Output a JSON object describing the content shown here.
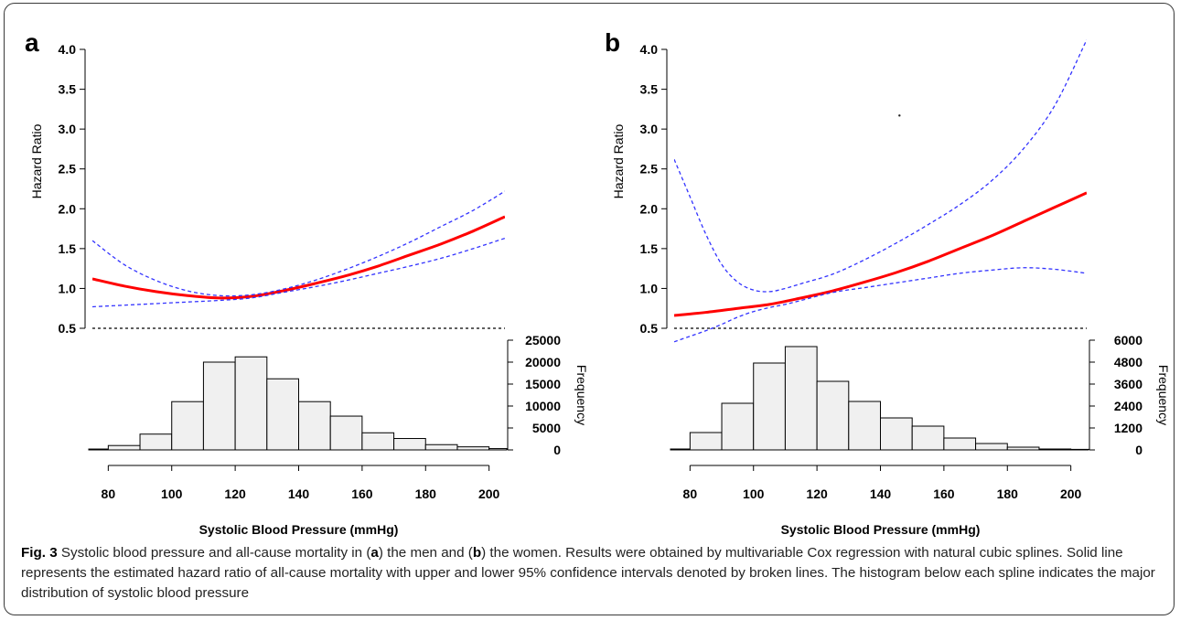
{
  "caption": {
    "fig_label": "Fig. 3",
    "segments": [
      {
        "t": " Systolic blood pressure and all-cause mortality in (",
        "b": false
      },
      {
        "t": "a",
        "b": true
      },
      {
        "t": ") the men and (",
        "b": false
      },
      {
        "t": "b",
        "b": true
      },
      {
        "t": ") the women. Results were obtained by multivariable Cox regression with natural cubic splines. Solid line represents the estimated hazard ratio of all-cause mortality with upper and lower 95% confidence intervals denoted by broken lines. The histogram below each spline indicates the major distribution of systolic blood pressure",
        "b": false
      }
    ]
  },
  "colors": {
    "estimate": "#ff0000",
    "ci": "#3333ff",
    "reference": "#000000",
    "hist_fill": "#f0f0f0",
    "hist_stroke": "#000000"
  },
  "chart_data": [
    {
      "panel": "a",
      "type": "line",
      "xlabel": "Systolic Blood Pressure (mmHg)",
      "ylabel": "Hazard Ratio",
      "ylabel_right": "Frequency",
      "xlim": [
        75,
        205
      ],
      "xticks": [
        80,
        100,
        120,
        140,
        160,
        180,
        200
      ],
      "ylim": [
        0.5,
        4.0
      ],
      "yticks": [
        "0.5",
        "1.0",
        "1.5",
        "2.0",
        "2.5",
        "3.0",
        "3.5",
        "4.0"
      ],
      "reference_line": 0.5,
      "series": [
        {
          "role": "estimate",
          "style": "solid",
          "x": [
            75,
            85,
            95,
            105,
            115,
            125,
            135,
            145,
            155,
            165,
            175,
            185,
            195,
            205
          ],
          "y": [
            1.12,
            1.03,
            0.96,
            0.91,
            0.88,
            0.9,
            0.97,
            1.06,
            1.16,
            1.28,
            1.42,
            1.56,
            1.72,
            1.9
          ]
        },
        {
          "role": "ci_upper",
          "style": "dashed",
          "x": [
            75,
            85,
            95,
            105,
            115,
            125,
            135,
            145,
            155,
            165,
            175,
            185,
            195,
            205
          ],
          "y": [
            1.6,
            1.3,
            1.1,
            0.97,
            0.91,
            0.92,
            0.99,
            1.1,
            1.24,
            1.4,
            1.58,
            1.78,
            1.98,
            2.22
          ]
        },
        {
          "role": "ci_lower",
          "style": "dashed",
          "x": [
            75,
            85,
            95,
            105,
            115,
            125,
            135,
            145,
            155,
            165,
            175,
            185,
            195,
            205
          ],
          "y": [
            0.77,
            0.79,
            0.81,
            0.83,
            0.85,
            0.88,
            0.95,
            1.02,
            1.1,
            1.19,
            1.28,
            1.38,
            1.5,
            1.63
          ]
        }
      ],
      "histogram": {
        "bin_width": 10,
        "ylim": [
          0,
          25000
        ],
        "yticks": [
          "0",
          "5000",
          "10000",
          "15000",
          "20000",
          "25000"
        ],
        "bins": [
          {
            "x0": 70,
            "x1": 80,
            "count": 200
          },
          {
            "x0": 80,
            "x1": 90,
            "count": 1000
          },
          {
            "x0": 90,
            "x1": 100,
            "count": 3600
          },
          {
            "x0": 100,
            "x1": 110,
            "count": 11000
          },
          {
            "x0": 110,
            "x1": 120,
            "count": 20000
          },
          {
            "x0": 120,
            "x1": 130,
            "count": 21200
          },
          {
            "x0": 130,
            "x1": 140,
            "count": 16200
          },
          {
            "x0": 140,
            "x1": 150,
            "count": 11000
          },
          {
            "x0": 150,
            "x1": 160,
            "count": 7700
          },
          {
            "x0": 160,
            "x1": 170,
            "count": 3900
          },
          {
            "x0": 170,
            "x1": 180,
            "count": 2600
          },
          {
            "x0": 180,
            "x1": 190,
            "count": 1200
          },
          {
            "x0": 190,
            "x1": 200,
            "count": 700
          },
          {
            "x0": 200,
            "x1": 210,
            "count": 300
          }
        ]
      }
    },
    {
      "panel": "b",
      "type": "line",
      "xlabel": "Systolic Blood Pressure (mmHg)",
      "ylabel": "Hazard Ratio",
      "ylabel_right": "Frequency",
      "xlim": [
        75,
        205
      ],
      "xticks": [
        80,
        100,
        120,
        140,
        160,
        180,
        200
      ],
      "ylim": [
        0.5,
        4.0
      ],
      "yticks": [
        "0.5",
        "1.0",
        "1.5",
        "2.0",
        "2.5",
        "3.0",
        "3.5",
        "4.0"
      ],
      "reference_line": 0.5,
      "series": [
        {
          "role": "estimate",
          "style": "solid",
          "x": [
            75,
            85,
            95,
            105,
            115,
            125,
            135,
            145,
            155,
            165,
            175,
            185,
            195,
            205
          ],
          "y": [
            0.66,
            0.7,
            0.75,
            0.8,
            0.88,
            0.97,
            1.08,
            1.2,
            1.34,
            1.5,
            1.66,
            1.84,
            2.02,
            2.2
          ]
        },
        {
          "role": "ci_upper",
          "style": "dashed",
          "x": [
            75,
            80,
            85,
            90,
            95,
            100,
            105,
            110,
            115,
            125,
            135,
            145,
            155,
            165,
            175,
            185,
            195,
            205
          ],
          "y": [
            2.62,
            2.15,
            1.68,
            1.3,
            1.08,
            0.98,
            0.96,
            1.0,
            1.06,
            1.18,
            1.36,
            1.57,
            1.8,
            2.05,
            2.35,
            2.75,
            3.3,
            4.12
          ]
        },
        {
          "role": "ci_lower",
          "style": "dashed",
          "x": [
            75,
            80,
            85,
            90,
            95,
            100,
            105,
            110,
            115,
            125,
            135,
            145,
            155,
            165,
            175,
            185,
            195,
            205
          ],
          "y": [
            0.33,
            0.4,
            0.47,
            0.55,
            0.64,
            0.71,
            0.76,
            0.8,
            0.85,
            0.95,
            1.01,
            1.07,
            1.13,
            1.19,
            1.23,
            1.26,
            1.24,
            1.19
          ]
        }
      ],
      "stray_point": {
        "x": 146,
        "y": 3.17
      },
      "histogram": {
        "bin_width": 10,
        "ylim": [
          0,
          6000
        ],
        "yticks": [
          "0",
          "1200",
          "2400",
          "3600",
          "4800",
          "6000"
        ],
        "bins": [
          {
            "x0": 70,
            "x1": 80,
            "count": 50
          },
          {
            "x0": 80,
            "x1": 90,
            "count": 950
          },
          {
            "x0": 90,
            "x1": 100,
            "count": 2550
          },
          {
            "x0": 100,
            "x1": 110,
            "count": 4750
          },
          {
            "x0": 110,
            "x1": 120,
            "count": 5650
          },
          {
            "x0": 120,
            "x1": 130,
            "count": 3750
          },
          {
            "x0": 130,
            "x1": 140,
            "count": 2650
          },
          {
            "x0": 140,
            "x1": 150,
            "count": 1750
          },
          {
            "x0": 150,
            "x1": 160,
            "count": 1300
          },
          {
            "x0": 160,
            "x1": 170,
            "count": 650
          },
          {
            "x0": 170,
            "x1": 180,
            "count": 350
          },
          {
            "x0": 180,
            "x1": 190,
            "count": 150
          },
          {
            "x0": 190,
            "x1": 200,
            "count": 50
          },
          {
            "x0": 200,
            "x1": 210,
            "count": 30
          }
        ]
      }
    }
  ]
}
